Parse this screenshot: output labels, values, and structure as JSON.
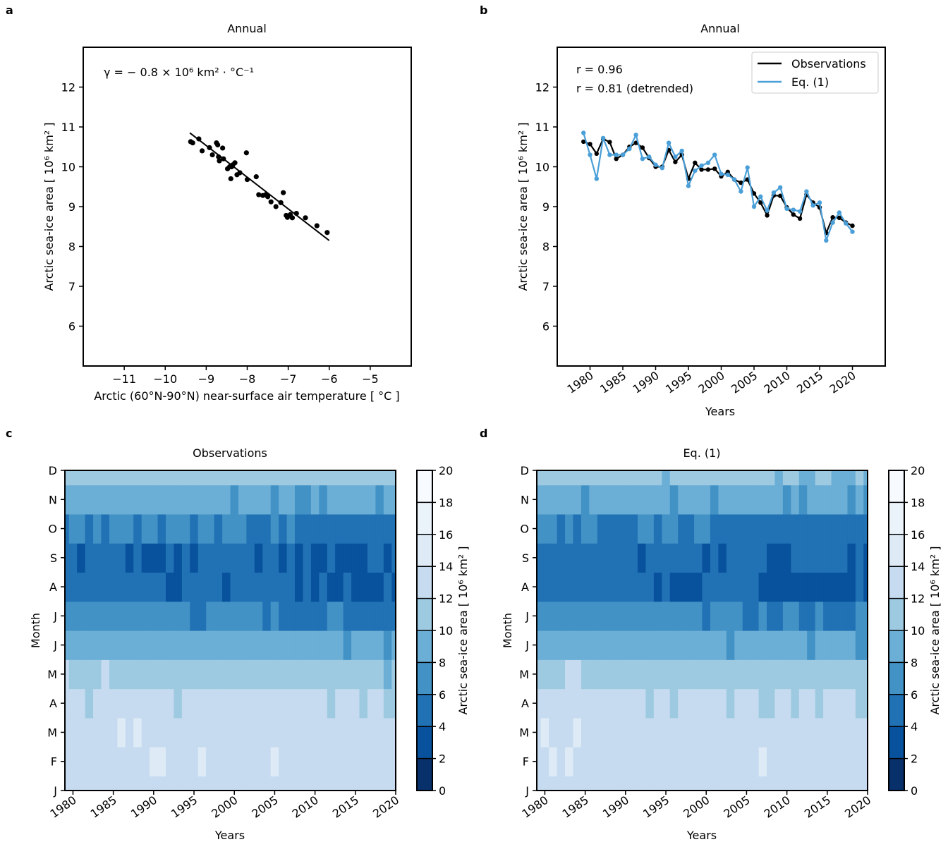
{
  "chart_data": [
    {
      "panel": "a",
      "type": "scatter",
      "title": "Annual",
      "xlabel": "Arctic (60°N-90°N) near-surface air temperature [ °C ]",
      "ylabel": "Arctic sea-ice area [ 10⁶ km² ]",
      "annotation": "γ = − 0.8 × 10⁶ km² · °C⁻¹",
      "xlim": [
        -12,
        -4
      ],
      "ylim": [
        5,
        13
      ],
      "xticks": [
        -11,
        -10,
        -9,
        -8,
        -7,
        -6,
        -5
      ],
      "xtick_labels": [
        "−11",
        "−10",
        "−9",
        "−8",
        "−7",
        "−6",
        "−5"
      ],
      "yticks": [
        6,
        7,
        8,
        9,
        10,
        11,
        12
      ],
      "ytick_labels": [
        "6",
        "7",
        "8",
        "9",
        "10",
        "11",
        "12"
      ],
      "points": [
        [
          -9.38,
          10.63
        ],
        [
          -9.33,
          10.6
        ],
        [
          -9.18,
          10.7
        ],
        [
          -9.1,
          10.4
        ],
        [
          -8.92,
          10.48
        ],
        [
          -8.85,
          10.3
        ],
        [
          -8.75,
          10.6
        ],
        [
          -8.72,
          10.55
        ],
        [
          -8.7,
          10.25
        ],
        [
          -8.68,
          10.15
        ],
        [
          -8.6,
          10.47
        ],
        [
          -8.58,
          10.2
        ],
        [
          -8.48,
          9.95
        ],
        [
          -8.43,
          10.0
        ],
        [
          -8.38,
          10.0
        ],
        [
          -8.35,
          10.05
        ],
        [
          -8.3,
          10.1
        ],
        [
          -8.4,
          9.7
        ],
        [
          -8.25,
          9.8
        ],
        [
          -8.18,
          9.85
        ],
        [
          -8.02,
          10.35
        ],
        [
          -8.0,
          9.68
        ],
        [
          -7.78,
          9.75
        ],
        [
          -7.72,
          9.3
        ],
        [
          -7.62,
          9.28
        ],
        [
          -7.55,
          9.3
        ],
        [
          -7.5,
          9.25
        ],
        [
          -7.42,
          9.12
        ],
        [
          -7.3,
          9.0
        ],
        [
          -7.18,
          9.1
        ],
        [
          -7.12,
          9.35
        ],
        [
          -7.05,
          8.78
        ],
        [
          -7.02,
          8.73
        ],
        [
          -6.95,
          8.8
        ],
        [
          -6.9,
          8.72
        ],
        [
          -6.8,
          8.83
        ],
        [
          -6.58,
          8.72
        ],
        [
          -6.3,
          8.52
        ],
        [
          -6.05,
          8.35
        ]
      ],
      "fit_line": {
        "x": [
          -9.4,
          -6.0
        ],
        "y": [
          10.85,
          8.15
        ]
      }
    },
    {
      "panel": "b",
      "type": "line",
      "title": "Annual",
      "xlabel": "Years",
      "ylabel": "Arctic sea-ice area [ 10⁶ km² ]",
      "annotation_lines": [
        "r = 0.96",
        "r = 0.81 (detrended)"
      ],
      "xlim": [
        1975,
        2025
      ],
      "ylim": [
        5,
        13
      ],
      "xticks": [
        1980,
        1985,
        1990,
        1995,
        2000,
        2005,
        2010,
        2015,
        2020
      ],
      "xtick_labels": [
        "1980",
        "1985",
        "1990",
        "1995",
        "2000",
        "2005",
        "2010",
        "2015",
        "2020"
      ],
      "yticks": [
        6,
        7,
        8,
        9,
        10,
        11,
        12
      ],
      "ytick_labels": [
        "6",
        "7",
        "8",
        "9",
        "10",
        "11",
        "12"
      ],
      "legend_position": "top-right",
      "x": [
        1979,
        1980,
        1981,
        1982,
        1983,
        1984,
        1985,
        1986,
        1987,
        1988,
        1989,
        1990,
        1991,
        1992,
        1993,
        1994,
        1995,
        1996,
        1997,
        1998,
        1999,
        2000,
        2001,
        2002,
        2003,
        2004,
        2005,
        2006,
        2007,
        2008,
        2009,
        2010,
        2011,
        2012,
        2013,
        2014,
        2015,
        2016,
        2017,
        2018,
        2019,
        2020
      ],
      "series": [
        {
          "name": "Observations",
          "color": "#000000",
          "values": [
            10.63,
            10.57,
            10.33,
            10.7,
            10.62,
            10.2,
            10.3,
            10.5,
            10.6,
            10.48,
            10.22,
            10.0,
            10.0,
            10.42,
            10.12,
            10.3,
            9.7,
            10.1,
            9.93,
            9.93,
            9.95,
            9.76,
            9.87,
            9.68,
            9.6,
            9.68,
            9.33,
            9.1,
            8.78,
            9.28,
            9.27,
            8.98,
            8.8,
            8.7,
            9.3,
            9.1,
            8.98,
            8.34,
            8.73,
            8.72,
            8.6,
            8.52
          ]
        },
        {
          "name": "Eq. (1)",
          "color": "#4a9fd8",
          "values": [
            10.85,
            10.3,
            9.7,
            10.72,
            10.3,
            10.3,
            10.3,
            10.45,
            10.8,
            10.2,
            10.25,
            10.05,
            9.97,
            10.6,
            10.25,
            10.4,
            9.52,
            9.9,
            10.03,
            10.1,
            10.3,
            9.82,
            9.8,
            9.68,
            9.38,
            9.98,
            9.0,
            9.25,
            8.9,
            9.35,
            9.48,
            8.95,
            8.92,
            8.88,
            9.38,
            9.03,
            9.1,
            8.15,
            8.6,
            8.85,
            8.58,
            8.37
          ]
        }
      ]
    },
    {
      "panel": "c",
      "type": "heatmap",
      "title": "Observations",
      "xlabel": "Years",
      "ylabel": "Month",
      "colorbar_label": "Arctic sea-ice area [ 10⁶ km² ]",
      "x_range": [
        1979,
        2020
      ],
      "xticks": [
        1980,
        1985,
        1990,
        1995,
        2000,
        2005,
        2010,
        2015,
        2020
      ],
      "xtick_labels": [
        "1980",
        "1985",
        "1990",
        "1995",
        "2000",
        "2005",
        "2010",
        "2015",
        "2020"
      ],
      "months": [
        "J",
        "F",
        "M",
        "A",
        "M",
        "J",
        "J",
        "A",
        "S",
        "O",
        "N",
        "D"
      ],
      "levels": [
        0,
        2,
        4,
        6,
        8,
        10,
        12,
        14,
        16,
        18,
        20
      ],
      "level_labels": [
        "0",
        "2",
        "4",
        "6",
        "8",
        "10",
        "12",
        "14",
        "16",
        "18",
        "20"
      ],
      "level_colors": [
        "#08306b",
        "#08519c",
        "#2171b5",
        "#4292c6",
        "#6baed6",
        "#9ecae1",
        "#c6dbef",
        "#deebf7",
        "#eaf2fa",
        "#f7fbff"
      ],
      "monthly_profile_start": [
        13.0,
        13.6,
        13.5,
        12.7,
        11.6,
        9.5,
        7.2,
        5.0,
        4.7,
        6.4,
        9.0,
        11.2
      ],
      "monthly_profile_end": [
        13.0,
        13.3,
        13.0,
        12.0,
        10.6,
        8.2,
        5.6,
        3.6,
        3.9,
        5.2,
        8.0,
        10.2
      ]
    },
    {
      "panel": "d",
      "type": "heatmap",
      "title": "Eq. (1)",
      "xlabel": "Years",
      "ylabel": "Month",
      "colorbar_label": "Arctic sea-ice area [ 10⁶ km² ]",
      "x_range": [
        1979,
        2020
      ],
      "xticks": [
        1980,
        1985,
        1990,
        1995,
        2000,
        2005,
        2010,
        2015,
        2020
      ],
      "xtick_labels": [
        "1980",
        "1985",
        "1990",
        "1995",
        "2000",
        "2005",
        "2010",
        "2015",
        "2020"
      ],
      "months": [
        "J",
        "F",
        "M",
        "A",
        "M",
        "J",
        "J",
        "A",
        "S",
        "O",
        "N",
        "D"
      ],
      "levels": [
        0,
        2,
        4,
        6,
        8,
        10,
        12,
        14,
        16,
        18,
        20
      ],
      "level_labels": [
        "0",
        "2",
        "4",
        "6",
        "8",
        "10",
        "12",
        "14",
        "16",
        "18",
        "20"
      ],
      "level_colors": [
        "#08306b",
        "#08519c",
        "#2171b5",
        "#4292c6",
        "#6baed6",
        "#9ecae1",
        "#c6dbef",
        "#deebf7",
        "#eaf2fa",
        "#f7fbff"
      ],
      "monthly_profile_start": [
        12.9,
        13.5,
        13.5,
        12.8,
        11.5,
        9.3,
        7.0,
        4.9,
        4.7,
        6.2,
        8.8,
        11.0
      ],
      "monthly_profile_end": [
        12.9,
        13.3,
        13.0,
        12.1,
        10.6,
        8.1,
        5.5,
        3.6,
        3.9,
        5.1,
        7.9,
        10.1
      ]
    }
  ],
  "panel_letters": [
    "a",
    "b",
    "c",
    "d"
  ]
}
